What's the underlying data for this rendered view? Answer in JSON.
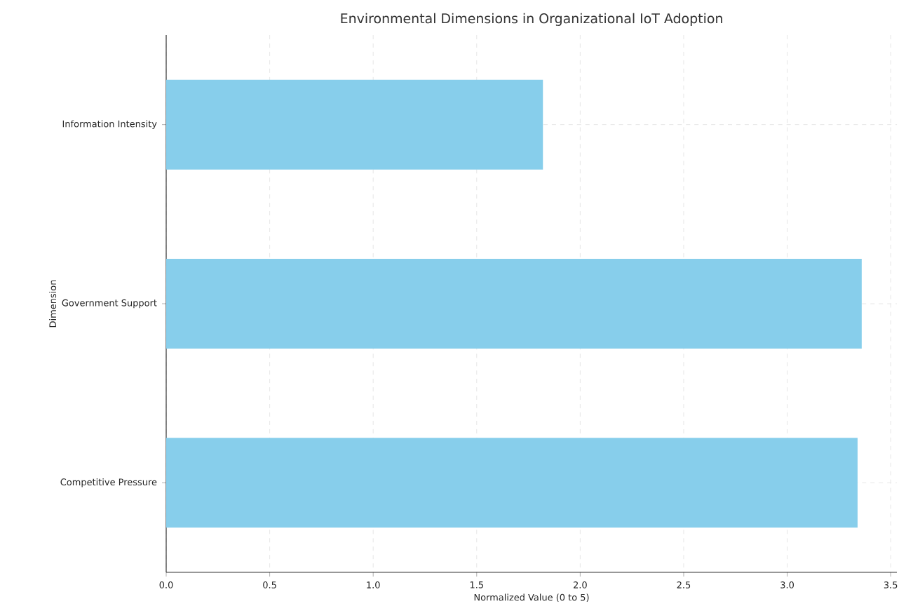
{
  "chart_data": {
    "type": "bar",
    "orientation": "horizontal",
    "title": "Environmental Dimensions in Organizational IoT Adoption",
    "xlabel": "Normalized Value (0 to 5)",
    "ylabel": "Dimension",
    "categories": [
      "Information Intensity",
      "Government Support",
      "Competitive Pressure"
    ],
    "values": [
      1.82,
      3.36,
      3.34
    ],
    "color": "#87ceeb",
    "xlim": [
      0,
      3.53
    ],
    "xticks": [
      {
        "value": 0,
        "label": "0.0"
      },
      0.5,
      {
        "value": 1,
        "label": "1.0"
      },
      1.5,
      {
        "value": 2,
        "label": "2.0"
      },
      2.5,
      {
        "value": 3,
        "label": "3.0"
      },
      3.5
    ],
    "grid": true
  }
}
